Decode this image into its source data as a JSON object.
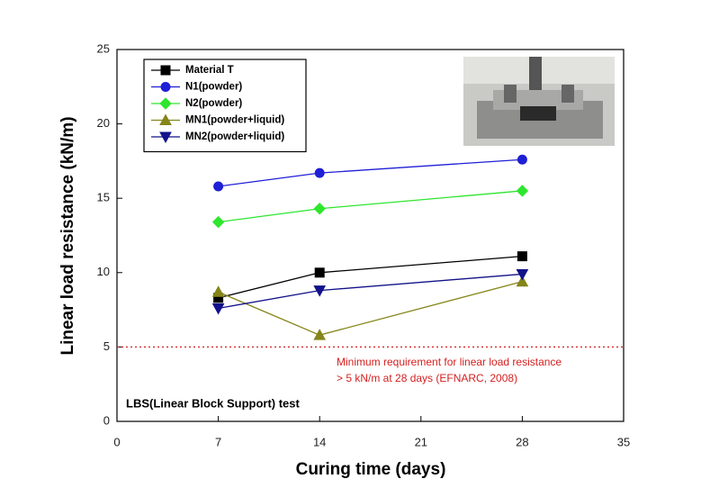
{
  "chart_data": {
    "type": "line",
    "x_label": "Curing time (days)",
    "y_label": "Linear load resistance (kN/m)",
    "x": [
      7,
      14,
      28
    ],
    "series": [
      {
        "name": "Material T",
        "color": "#000000",
        "marker": "square",
        "values": [
          8.3,
          10.0,
          11.1
        ]
      },
      {
        "name": "N1(powder)",
        "color": "#1f1fd6",
        "marker": "circle",
        "values": [
          15.8,
          16.7,
          17.6
        ]
      },
      {
        "name": "N2(powder)",
        "color": "#2ee62e",
        "marker": "diamond",
        "values": [
          13.4,
          14.3,
          15.5
        ]
      },
      {
        "name": "MN1(powder+liquid)",
        "color": "#85851a",
        "marker": "triangle-up",
        "values": [
          8.7,
          5.8,
          9.4
        ]
      },
      {
        "name": "MN2(powder+liquid)",
        "color": "#12128a",
        "marker": "triangle-down",
        "values": [
          7.6,
          8.8,
          9.9
        ]
      }
    ],
    "xlim": [
      0,
      35
    ],
    "xticks": [
      0,
      7,
      14,
      21,
      28,
      35
    ],
    "ylim": [
      0,
      25
    ],
    "yticks": [
      0,
      5,
      10,
      15,
      20,
      25
    ],
    "threshold": 5,
    "threshold_color": "#d62020",
    "annotations": [
      "Minimum requirement for linear load resistance",
      "> 5 kN/m at 28 days (EFNARC, 2008)",
      "LBS(Linear Block Support) test"
    ]
  }
}
